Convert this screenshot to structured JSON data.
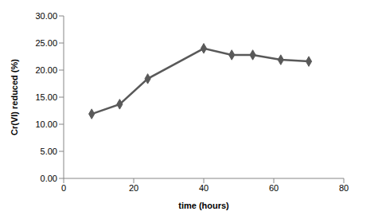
{
  "chart_data": {
    "type": "line",
    "x_label": "time (hours)",
    "y_label": "Cr(VI) reduced (%)",
    "x": [
      8,
      16,
      24,
      40,
      48,
      54,
      62,
      70
    ],
    "values": [
      11.9,
      13.7,
      18.4,
      24.0,
      22.8,
      22.8,
      21.9,
      21.6
    ],
    "color": "#595959",
    "marker": "diamond",
    "line_style": "solid",
    "xlim": [
      0,
      80
    ],
    "xticks": [
      0,
      20,
      40,
      60,
      80
    ],
    "ylim": [
      0,
      30
    ],
    "yticks": [
      {
        "value": 0,
        "label": "0.00"
      },
      {
        "value": 5,
        "label": "5.00"
      },
      {
        "value": 10,
        "label": "10.00"
      },
      {
        "value": 15,
        "label": "15.00"
      },
      {
        "value": 20,
        "label": "20.00"
      },
      {
        "value": 25,
        "label": "25.00"
      },
      {
        "value": 30,
        "label": "30.00"
      }
    ],
    "grid": false
  }
}
